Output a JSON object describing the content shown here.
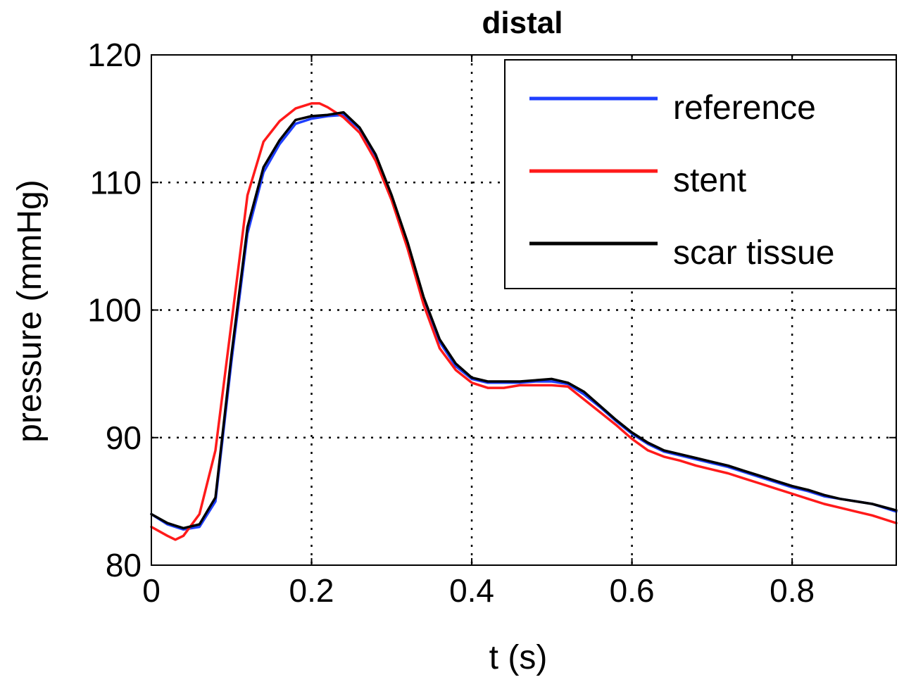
{
  "chart_data": {
    "type": "line",
    "title": "distal",
    "xlabel": "t (s)",
    "ylabel": "pressure (mmHg)",
    "xlim": [
      0,
      0.93
    ],
    "ylim": [
      80,
      120
    ],
    "xticks": [
      0,
      0.2,
      0.4,
      0.6,
      0.8
    ],
    "xtick_labels": [
      "0",
      "0.2",
      "0.4",
      "0.6",
      "0.8"
    ],
    "yticks": [
      80,
      90,
      100,
      110,
      120
    ],
    "ytick_labels": [
      "80",
      "90",
      "100",
      "110",
      "120"
    ],
    "grid": true,
    "legend_position": "top-right",
    "series": [
      {
        "name": "reference",
        "color": "#1f3fff",
        "x": [
          0,
          0.02,
          0.04,
          0.06,
          0.08,
          0.1,
          0.12,
          0.14,
          0.16,
          0.18,
          0.2,
          0.22,
          0.24,
          0.26,
          0.28,
          0.3,
          0.32,
          0.34,
          0.36,
          0.38,
          0.4,
          0.42,
          0.44,
          0.46,
          0.48,
          0.5,
          0.52,
          0.54,
          0.56,
          0.58,
          0.6,
          0.62,
          0.64,
          0.66,
          0.68,
          0.7,
          0.72,
          0.74,
          0.76,
          0.78,
          0.8,
          0.82,
          0.84,
          0.86,
          0.88,
          0.9,
          0.93
        ],
        "values": [
          84.0,
          83.2,
          82.8,
          83.0,
          85.0,
          96.0,
          106.0,
          110.8,
          113.0,
          114.6,
          115.0,
          115.2,
          115.3,
          114.2,
          112.0,
          108.8,
          105.0,
          100.8,
          97.5,
          95.6,
          94.6,
          94.3,
          94.3,
          94.3,
          94.4,
          94.4,
          94.2,
          93.4,
          92.4,
          91.3,
          90.3,
          89.5,
          88.9,
          88.6,
          88.3,
          88.0,
          87.7,
          87.3,
          86.9,
          86.5,
          86.1,
          85.8,
          85.4,
          85.2,
          85.0,
          84.8,
          84.2
        ]
      },
      {
        "name": "stent",
        "color": "#ff1a1a",
        "x": [
          0,
          0.02,
          0.03,
          0.04,
          0.06,
          0.08,
          0.1,
          0.12,
          0.14,
          0.16,
          0.18,
          0.2,
          0.21,
          0.22,
          0.24,
          0.26,
          0.28,
          0.3,
          0.32,
          0.34,
          0.36,
          0.38,
          0.4,
          0.42,
          0.44,
          0.46,
          0.48,
          0.5,
          0.52,
          0.54,
          0.56,
          0.58,
          0.6,
          0.62,
          0.64,
          0.66,
          0.68,
          0.7,
          0.72,
          0.74,
          0.76,
          0.78,
          0.8,
          0.82,
          0.84,
          0.86,
          0.88,
          0.9,
          0.93
        ],
        "values": [
          83.0,
          82.3,
          82.0,
          82.3,
          84.0,
          89.0,
          99.0,
          109.0,
          113.2,
          114.8,
          115.8,
          116.2,
          116.2,
          115.9,
          115.1,
          113.9,
          111.7,
          108.6,
          104.8,
          100.4,
          97.0,
          95.3,
          94.3,
          93.9,
          93.9,
          94.1,
          94.1,
          94.1,
          94.0,
          93.0,
          92.0,
          91.0,
          89.9,
          89.0,
          88.5,
          88.2,
          87.8,
          87.5,
          87.2,
          86.8,
          86.4,
          86.0,
          85.6,
          85.2,
          84.8,
          84.5,
          84.2,
          83.9,
          83.3
        ]
      },
      {
        "name": "scar tissue",
        "color": "#000000",
        "x": [
          0,
          0.02,
          0.04,
          0.06,
          0.08,
          0.1,
          0.12,
          0.14,
          0.16,
          0.18,
          0.2,
          0.22,
          0.24,
          0.26,
          0.28,
          0.3,
          0.32,
          0.34,
          0.36,
          0.38,
          0.4,
          0.42,
          0.44,
          0.46,
          0.48,
          0.5,
          0.52,
          0.54,
          0.56,
          0.58,
          0.6,
          0.62,
          0.64,
          0.66,
          0.68,
          0.7,
          0.72,
          0.74,
          0.76,
          0.78,
          0.8,
          0.82,
          0.84,
          0.86,
          0.88,
          0.9,
          0.93
        ],
        "values": [
          84.0,
          83.3,
          82.9,
          83.2,
          85.3,
          96.5,
          106.5,
          111.2,
          113.3,
          114.9,
          115.2,
          115.3,
          115.5,
          114.3,
          112.2,
          109.0,
          105.3,
          101.0,
          97.7,
          95.8,
          94.7,
          94.4,
          94.4,
          94.4,
          94.5,
          94.6,
          94.3,
          93.6,
          92.5,
          91.4,
          90.4,
          89.6,
          89.0,
          88.7,
          88.4,
          88.1,
          87.8,
          87.4,
          87.0,
          86.6,
          86.2,
          85.9,
          85.5,
          85.2,
          85.0,
          84.8,
          84.3
        ]
      }
    ]
  }
}
